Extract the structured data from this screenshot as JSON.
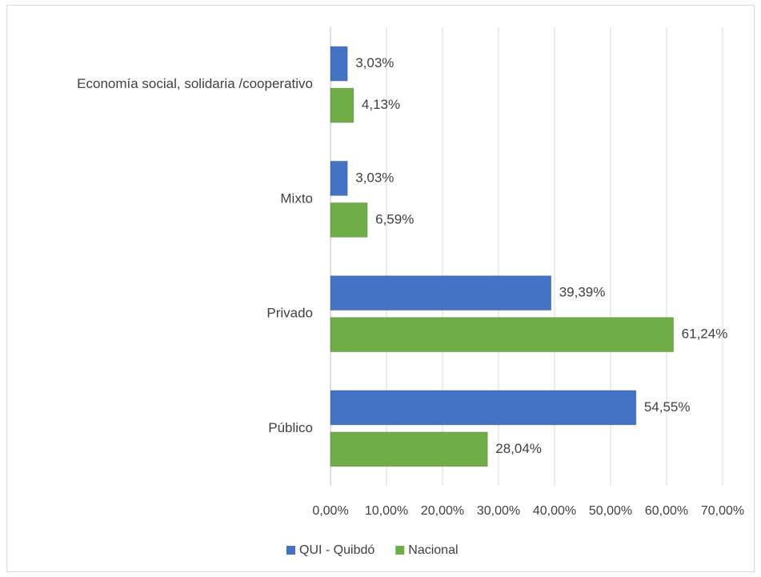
{
  "chart_data": {
    "type": "bar",
    "orientation": "horizontal",
    "categories": [
      "Economía social, solidaria /cooperativo",
      "Mixto",
      "Privado",
      "Público"
    ],
    "series": [
      {
        "name": "QUI - Quibdó",
        "color": "#4472C4",
        "values": [
          3.03,
          3.03,
          39.39,
          54.55
        ],
        "labels": [
          "3,03%",
          "3,03%",
          "39,39%",
          "54,55%"
        ]
      },
      {
        "name": "Nacional",
        "color": "#70AD47",
        "values": [
          4.13,
          6.59,
          61.24,
          28.04
        ],
        "labels": [
          "4,13%",
          "6,59%",
          "61,24%",
          "28,04%"
        ]
      }
    ],
    "xlim": [
      0,
      70
    ],
    "xticks": [
      "0,00%",
      "10,00%",
      "20,00%",
      "30,00%",
      "40,00%",
      "50,00%",
      "60,00%",
      "70,00%"
    ],
    "grid": true,
    "legend": "bottom"
  }
}
